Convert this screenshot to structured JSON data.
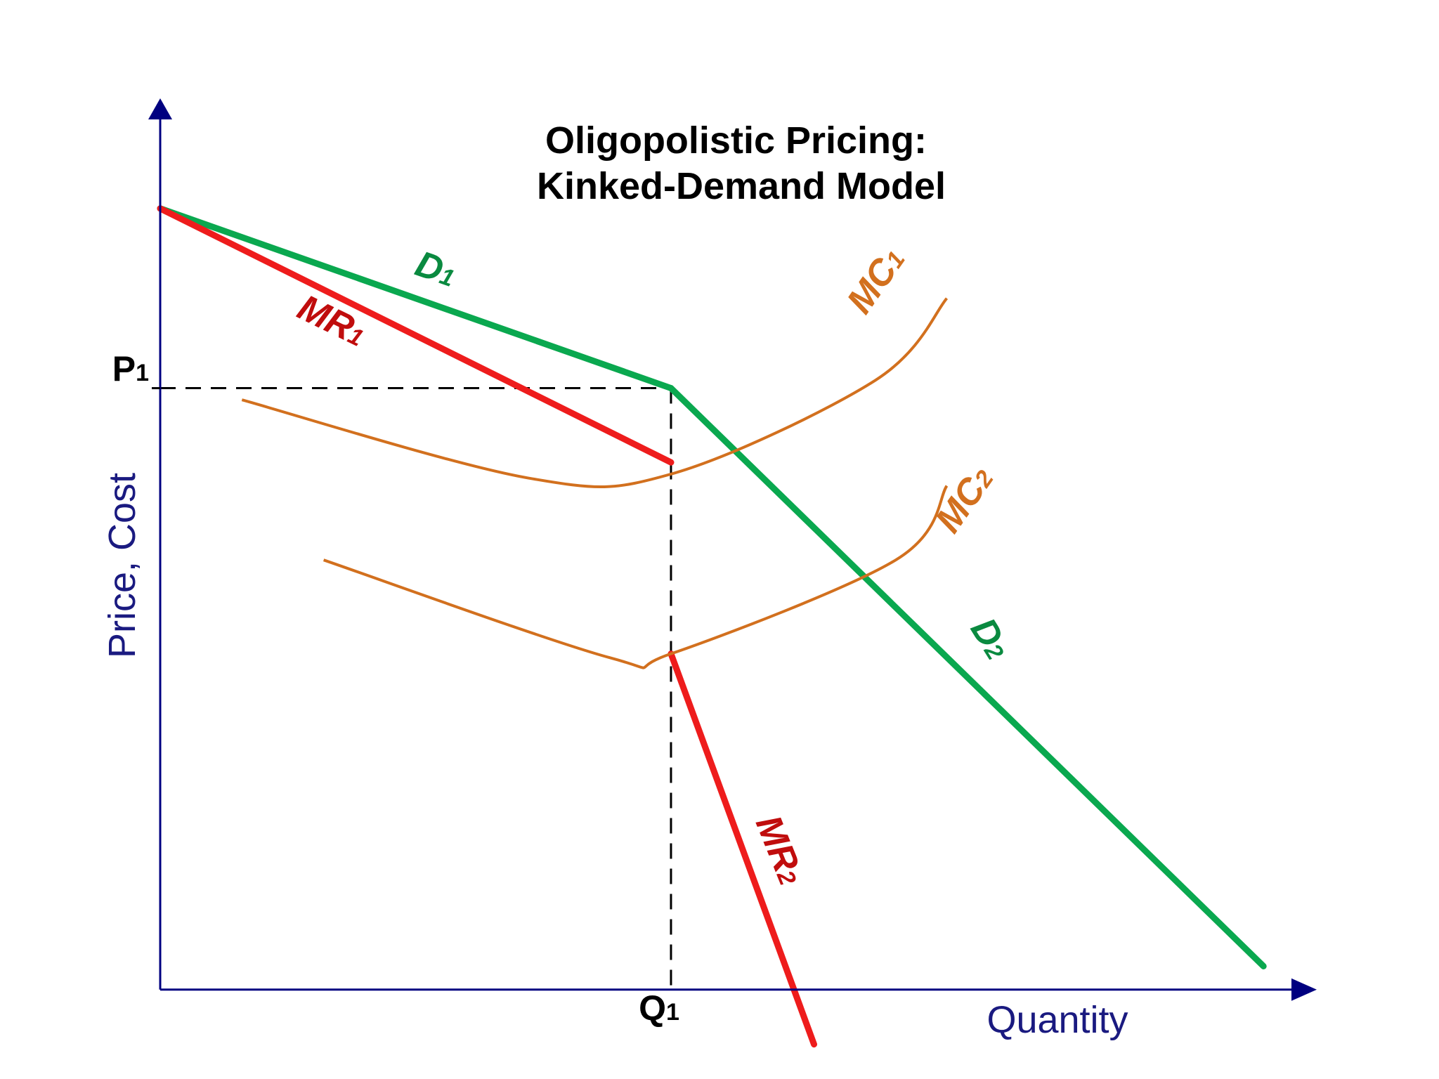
{
  "chart_data": {
    "type": "line",
    "title": [
      "Oligopolistic Pricing:",
      "Kinked-Demand Model"
    ],
    "xlabel": "Quantity",
    "ylabel": "Price, Cost",
    "x_ticks": [
      {
        "main": "Q",
        "sub": "1"
      }
    ],
    "y_ticks": [
      {
        "main": "P",
        "sub": "1"
      }
    ],
    "series": [
      {
        "name": "D1",
        "label_main": "D",
        "label_sub": "1",
        "color": "#0aa84f",
        "points": [
          [
            0,
            100
          ],
          [
            50,
            77
          ]
        ]
      },
      {
        "name": "D2",
        "label_main": "D",
        "label_sub": "2",
        "color": "#0aa84f",
        "points": [
          [
            50,
            77
          ],
          [
            108,
            3
          ]
        ]
      },
      {
        "name": "MR1",
        "label_main": "MR",
        "label_sub": "1",
        "color": "#ee1c1c",
        "points": [
          [
            0,
            100
          ],
          [
            50,
            67.5
          ]
        ]
      },
      {
        "name": "MR2",
        "label_main": "MR",
        "label_sub": "2",
        "color": "#ee1c1c",
        "points": [
          [
            50,
            43
          ],
          [
            64,
            -7
          ]
        ]
      },
      {
        "name": "MC1",
        "label_main": "MC",
        "label_sub": "1",
        "color": "#d2701e",
        "points": [
          [
            8,
            75.5
          ],
          [
            36,
            65.5
          ],
          [
            50,
            66
          ],
          [
            70,
            78
          ],
          [
            77,
            88.5
          ]
        ]
      },
      {
        "name": "MC2",
        "label_main": "MC",
        "label_sub": "2",
        "color": "#d2701e",
        "points": [
          [
            16,
            55
          ],
          [
            44,
            42.5
          ],
          [
            50,
            43
          ],
          [
            72,
            55
          ],
          [
            77,
            64.5
          ]
        ]
      }
    ],
    "reference_lines": [
      {
        "name": "P1-dashed",
        "points": [
          [
            0,
            77
          ],
          [
            50,
            77
          ]
        ]
      },
      {
        "name": "Q1-dashed",
        "points": [
          [
            50,
            77
          ],
          [
            50,
            0
          ]
        ]
      }
    ],
    "xlim": [
      0,
      115
    ],
    "ylim": [
      -10,
      115
    ],
    "grid": false,
    "colors": {
      "axis": "#000080",
      "axis_label": "#1a1a80",
      "dashed": "#000000"
    }
  }
}
